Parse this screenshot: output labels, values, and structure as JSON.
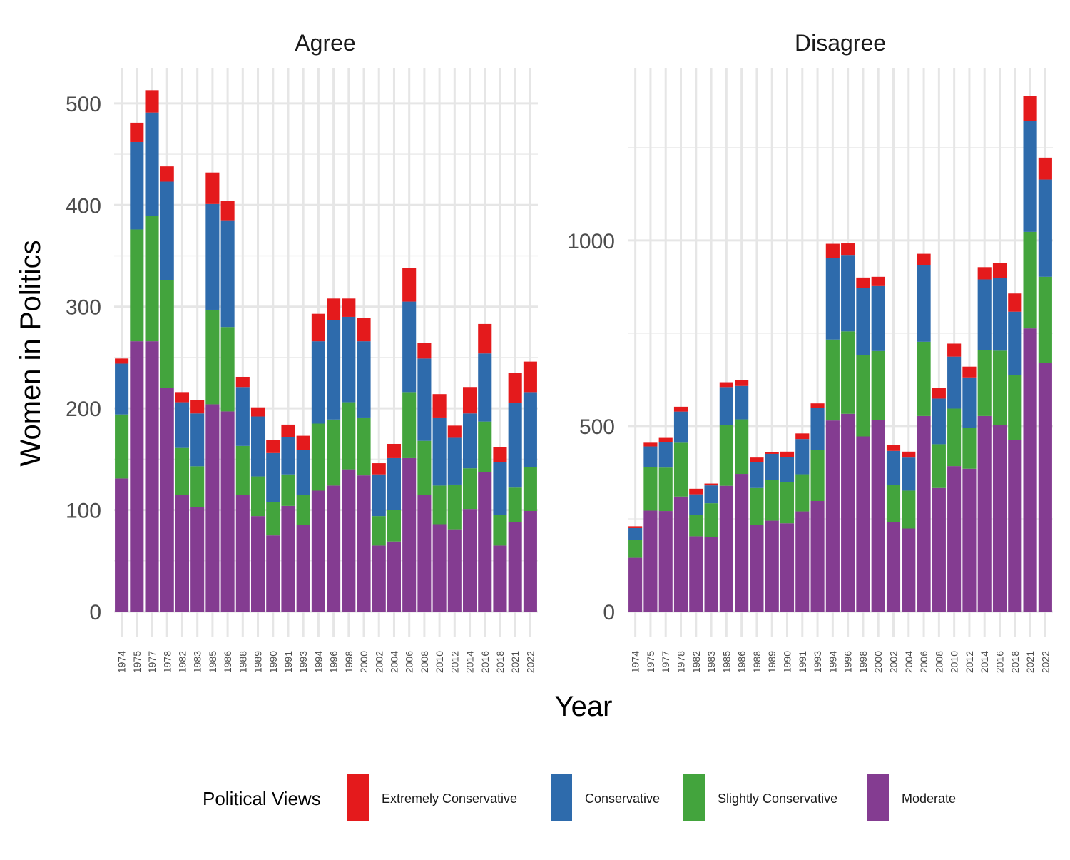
{
  "chart_data": {
    "type": "bar",
    "stacked": true,
    "xlabel": "Year",
    "ylabel": "Women in Politics",
    "legend": {
      "title": "Political Views",
      "placement": "bottom",
      "items": [
        {
          "name": "Extremely Conservative",
          "color": "#E41A1C"
        },
        {
          "name": "Conservative",
          "color": "#2E6BAC"
        },
        {
          "name": "Slightly Conservative",
          "color": "#43A43D"
        },
        {
          "name": "Moderate",
          "color": "#843C91"
        }
      ]
    },
    "categories": [
      "1974",
      "1975",
      "1977",
      "1978",
      "1982",
      "1983",
      "1985",
      "1986",
      "1988",
      "1989",
      "1990",
      "1991",
      "1993",
      "1994",
      "1996",
      "1998",
      "2000",
      "2002",
      "2004",
      "2006",
      "2008",
      "2010",
      "2012",
      "2014",
      "2016",
      "2018",
      "2021",
      "2022"
    ],
    "panels": [
      {
        "title": "Agree",
        "ylim": [
          0,
          535
        ],
        "yticks": [
          0,
          100,
          200,
          300,
          400,
          500
        ],
        "series": [
          {
            "name": "Moderate",
            "values": [
              131,
              266,
              266,
              220,
              115,
              103,
              204,
              197,
              115,
              94,
              75,
              104,
              85,
              119,
              124,
              140,
              134,
              65,
              69,
              151,
              115,
              86,
              81,
              101,
              137,
              65,
              88,
              99
            ]
          },
          {
            "name": "Slightly Conservative",
            "values": [
              63,
              110,
              123,
              106,
              46,
              40,
              93,
              83,
              48,
              39,
              33,
              31,
              30,
              66,
              65,
              66,
              57,
              29,
              31,
              65,
              53,
              38,
              44,
              40,
              50,
              30,
              34,
              43
            ]
          },
          {
            "name": "Conservative",
            "values": [
              50,
              86,
              102,
              97,
              45,
              52,
              104,
              105,
              58,
              59,
              48,
              37,
              44,
              81,
              98,
              84,
              75,
              41,
              51,
              89,
              81,
              67,
              46,
              54,
              67,
              52,
              83,
              74
            ]
          },
          {
            "name": "Extremely Conservative",
            "values": [
              5,
              19,
              22,
              15,
              10,
              13,
              31,
              19,
              10,
              9,
              13,
              12,
              14,
              27,
              21,
              18,
              23,
              11,
              14,
              33,
              15,
              23,
              12,
              26,
              29,
              15,
              30,
              30
            ]
          }
        ]
      },
      {
        "title": "Disagree",
        "ylim": [
          0,
          1465
        ],
        "yticks": [
          0,
          500,
          1000
        ],
        "series": [
          {
            "name": "Moderate",
            "values": [
              145,
              272,
              271,
              310,
              203,
              200,
              339,
              371,
              233,
              245,
              238,
              270,
              298,
              515,
              533,
              472,
              516,
              241,
              224,
              527,
              333,
              392,
              385,
              527,
              503,
              463,
              763,
              670
            ]
          },
          {
            "name": "Slightly Conservative",
            "values": [
              48,
              117,
              117,
              145,
              57,
              92,
              163,
              147,
              100,
              109,
              111,
              100,
              138,
              218,
              222,
              219,
              186,
              101,
              102,
              200,
              118,
              155,
              110,
              178,
              200,
              175,
              260,
              232
            ]
          },
          {
            "name": "Conservative",
            "values": [
              32,
              56,
              68,
              84,
              56,
              48,
              103,
              90,
              70,
              71,
              67,
              95,
              113,
              220,
              206,
              181,
              175,
              91,
              89,
              207,
              123,
              140,
              136,
              190,
              195,
              170,
              298,
              262
            ]
          },
          {
            "name": "Extremely Conservative",
            "values": [
              5,
              10,
              12,
              13,
              15,
              5,
              13,
              15,
              12,
              5,
              15,
              15,
              12,
              38,
              31,
              28,
              25,
              15,
              16,
              30,
              29,
              35,
              29,
              33,
              41,
              49,
              68,
              59
            ]
          }
        ]
      }
    ]
  }
}
